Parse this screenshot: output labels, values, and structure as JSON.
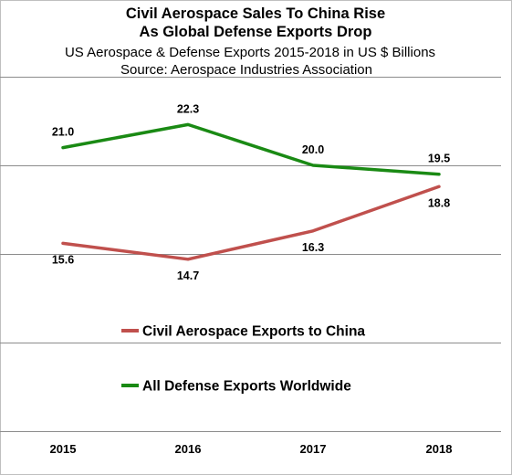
{
  "chart_data": {
    "type": "line",
    "title": "Civil Aerospace Sales To China Rise\nAs Global Defense Exports Drop",
    "subtitle": "US Aerospace & Defense Exports 2015-2018 in US $ Billions",
    "source": "Source: Aerospace Industries Association",
    "categories": [
      "2015",
      "2016",
      "2017",
      "2018"
    ],
    "series": [
      {
        "name": "All Defense Exports Worldwide",
        "color": "#1a8a14",
        "values": [
          21.0,
          22.3,
          20.0,
          19.5
        ]
      },
      {
        "name": "Civil Aerospace Exports to China",
        "color": "#c0504d",
        "values": [
          15.6,
          14.7,
          16.3,
          18.8
        ]
      }
    ],
    "ylim": [
      5,
      25
    ],
    "grid": true,
    "legend_placement": "center"
  }
}
